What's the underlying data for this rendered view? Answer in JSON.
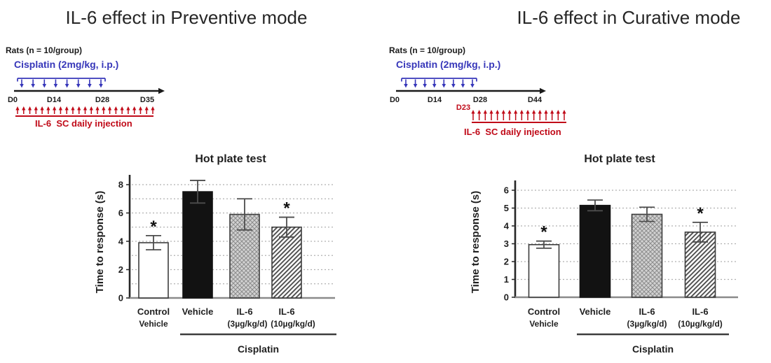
{
  "panels": [
    {
      "title": "IL-6 effect in Preventive mode",
      "timeline": {
        "subjects_label": "Rats (n = 10/group)",
        "cisplatin_label": "Cisplatin (2mg/kg, i.p.)",
        "cisplatin_arrow_count": 8,
        "days": [
          "D0",
          "D14",
          "D28",
          "D35"
        ],
        "il6_start_tag": "",
        "il6_arrow_count": 23,
        "il6_label": "IL-6  SC daily injection"
      }
    },
    {
      "title": "IL-6 effect in Curative mode",
      "timeline": {
        "subjects_label": "Rats (n = 10/group)",
        "cisplatin_label": "Cisplatin (2mg/kg, i.p.)",
        "cisplatin_arrow_count": 8,
        "days": [
          "D0",
          "D14",
          "D28",
          "D44"
        ],
        "il6_start_tag": "D23",
        "il6_arrow_count": 16,
        "il6_label": "IL-6  SC daily injection"
      }
    }
  ],
  "colors": {
    "cisplatin_blue": "#3636b9",
    "il6_red": "#c00a18",
    "timeline_black": "#1a1a1a",
    "grid_gray": "#b0b0b0",
    "baseline_gray": "#8a8a8a",
    "axis_black": "#262626",
    "bar_outline": "#3d3d3d",
    "solid_bar_fill": "#121212",
    "error_bar": "#4d4d4d",
    "text_dark": "#1f1f1f"
  },
  "chart_data": [
    {
      "type": "bar",
      "title": "Hot plate test",
      "ylabel": "Time to response (s)",
      "xlabel": "",
      "ylim": [
        0,
        8
      ],
      "ytick_labels": [
        0,
        2,
        4,
        6,
        8
      ],
      "grid_step": 1,
      "grid": "dotted-horizontal",
      "legend": "none",
      "categories": [
        [
          "Control",
          "Vehicle"
        ],
        [
          "Vehicle"
        ],
        [
          "IL-6",
          "(3µg/kg/d)"
        ],
        [
          "IL-6",
          "(10µg/kg/d)"
        ]
      ],
      "values": [
        3.9,
        7.5,
        5.9,
        5.0
      ],
      "errors": [
        0.5,
        0.8,
        1.1,
        0.7
      ],
      "significance": [
        "*",
        "",
        "",
        "*"
      ],
      "bar_styles": [
        "plain-white",
        "solid-black",
        "gray-crosshatch",
        "diagonal-hatch"
      ],
      "group_label": "Cisplatin",
      "group_range": [
        1,
        3
      ]
    },
    {
      "type": "bar",
      "title": "Hot plate test",
      "ylabel": "Time to response (s)",
      "xlabel": "",
      "ylim": [
        0,
        6
      ],
      "ytick_labels": [
        0,
        1,
        2,
        3,
        4,
        5,
        6
      ],
      "grid_step": 1,
      "grid": "dotted-horizontal",
      "legend": "none",
      "categories": [
        [
          "Control",
          "Vehicle"
        ],
        [
          "Vehicle"
        ],
        [
          "IL-6",
          "(3µg/kg/d)"
        ],
        [
          "IL-6",
          "(10µg/kg/d)"
        ]
      ],
      "values": [
        2.95,
        5.15,
        4.65,
        3.65
      ],
      "errors": [
        0.2,
        0.3,
        0.4,
        0.55
      ],
      "significance": [
        "*",
        "",
        "",
        "*"
      ],
      "bar_styles": [
        "plain-white",
        "solid-black",
        "gray-crosshatch",
        "diagonal-hatch"
      ],
      "group_label": "Cisplatin",
      "group_range": [
        1,
        3
      ]
    }
  ]
}
